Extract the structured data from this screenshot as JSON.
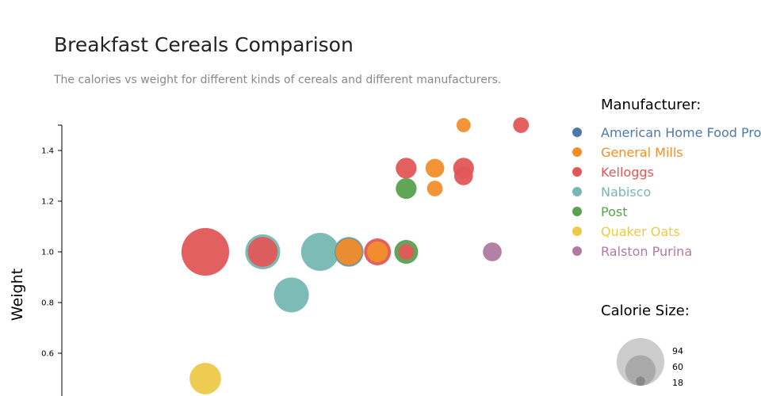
{
  "chart_data": {
    "type": "scatter",
    "title": "Breakfast Cereals Comparison",
    "subtitle": "The calories vs weight for different kinds of cereals and different manufacturers.",
    "ylabel": "Weight",
    "xlabel": "",
    "ylim": [
      0.44,
      1.51
    ],
    "xlim": [
      -5,
      12
    ],
    "yticks": [
      "0.6",
      "0.8",
      "1.0",
      "1.2",
      "1.4"
    ],
    "ytick_values": [
      0.6,
      0.8,
      1.0,
      1.2,
      1.4
    ],
    "legend_title": "Manufacturer:",
    "legend_placement": "right",
    "manufacturers": [
      {
        "name": "American Home Food Prod",
        "color": "#4e79a7"
      },
      {
        "name": "General Mills",
        "color": "#f28e2b"
      },
      {
        "name": "Kelloggs",
        "color": "#e15759"
      },
      {
        "name": "Nabisco",
        "color": "#76b7b2"
      },
      {
        "name": "Post",
        "color": "#59a14f"
      },
      {
        "name": "Quaker Oats",
        "color": "#edc948"
      },
      {
        "name": "Ralston Purina",
        "color": "#b07aa1"
      }
    ],
    "size_legend_title": "Calorie Size:",
    "size_legend_values": [
      94,
      60,
      18
    ],
    "points": [
      {
        "x": 0,
        "y": 1.0,
        "calories": 94,
        "m": 2
      },
      {
        "x": 2,
        "y": 1.0,
        "calories": 69,
        "m": 3
      },
      {
        "x": 2,
        "y": 1.0,
        "calories": 59,
        "m": 2
      },
      {
        "x": 3,
        "y": 0.83,
        "calories": 69,
        "m": 3
      },
      {
        "x": 4,
        "y": 1.0,
        "calories": 75,
        "m": 3
      },
      {
        "x": 5,
        "y": 1.0,
        "calories": 59,
        "m": 3
      },
      {
        "x": 5,
        "y": 1.0,
        "calories": 55,
        "m": 0
      },
      {
        "x": 5,
        "y": 1.0,
        "calories": 53,
        "m": 1
      },
      {
        "x": 6,
        "y": 1.0,
        "calories": 53,
        "m": 2
      },
      {
        "x": 6,
        "y": 1.0,
        "calories": 41,
        "m": 1
      },
      {
        "x": 7,
        "y": 1.0,
        "calories": 47,
        "m": 4
      },
      {
        "x": 7,
        "y": 1.0,
        "calories": 31,
        "m": 2
      },
      {
        "x": 10,
        "y": 1.0,
        "calories": 37,
        "m": 6
      },
      {
        "x": 0,
        "y": 0.5,
        "calories": 62,
        "m": 5
      },
      {
        "x": 7,
        "y": 1.33,
        "calories": 41,
        "m": 2
      },
      {
        "x": 7,
        "y": 1.25,
        "calories": 41,
        "m": 4
      },
      {
        "x": 8,
        "y": 1.33,
        "calories": 37,
        "m": 1
      },
      {
        "x": 8,
        "y": 1.25,
        "calories": 31,
        "m": 1
      },
      {
        "x": 9,
        "y": 1.33,
        "calories": 41,
        "m": 2
      },
      {
        "x": 9,
        "y": 1.3,
        "calories": 37,
        "m": 2
      },
      {
        "x": 9,
        "y": 1.5,
        "calories": 28,
        "m": 1
      },
      {
        "x": 11,
        "y": 1.5,
        "calories": 31,
        "m": 2
      }
    ]
  }
}
